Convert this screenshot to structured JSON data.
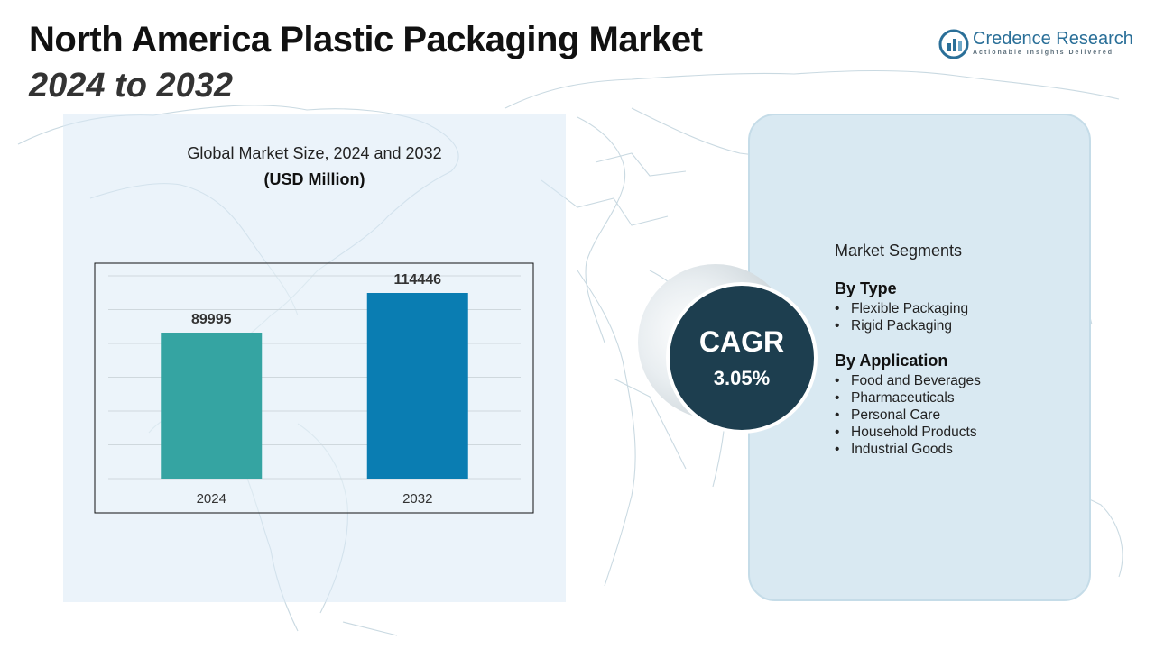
{
  "title": {
    "line1": "North America Plastic Packaging Market",
    "line2": "2024 to 2032"
  },
  "brand": {
    "name_part1": "Credence",
    "name_part2": "Research",
    "tagline": "Actionable Insights Delivered"
  },
  "chart_header": {
    "title": "Global Market Size, 2024 and 2032",
    "unit": "(USD Million)"
  },
  "chart_data": {
    "type": "bar",
    "categories": [
      "2024",
      "2032"
    ],
    "values": [
      89995,
      114446
    ],
    "data_labels": [
      "89995",
      "114446"
    ],
    "colors": [
      "#35a4a2",
      "#0a7db2"
    ],
    "grid": true,
    "ylim": [
      0,
      125000
    ]
  },
  "cagr": {
    "label": "CAGR",
    "value": "3.05%"
  },
  "segments": {
    "title": "Market Segments",
    "groups": [
      {
        "title": "By Type",
        "items": [
          "Flexible Packaging",
          "Rigid Packaging"
        ]
      },
      {
        "title": "By Application",
        "items": [
          "Food and Beverages",
          "Pharmaceuticals",
          "Personal Care",
          "Household Products",
          "Industrial Goods"
        ]
      }
    ]
  }
}
